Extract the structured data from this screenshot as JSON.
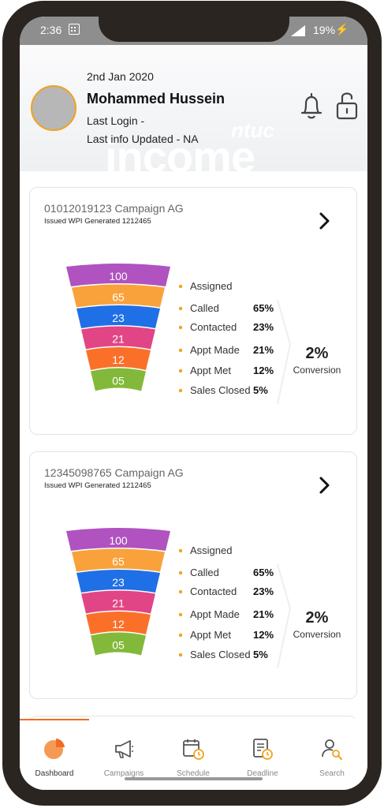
{
  "status_bar": {
    "time": "2:36",
    "battery": "19%"
  },
  "header": {
    "date": "2nd Jan 2020",
    "name": "Mohammed Hussein",
    "last_login": "Last Login -",
    "last_updated": "Last info Updated - NA",
    "watermark_brand": "ntuc",
    "watermark_word": "income",
    "accent_color": "#f2a21d"
  },
  "campaigns": [
    {
      "title": "01012019123 Campaign AG",
      "subtitle": "Issued WPI Generated 1212465",
      "funnel": [
        "100",
        "65",
        "23",
        "21",
        "12",
        "05"
      ],
      "stages": [
        {
          "label": "Assigned",
          "pct": ""
        },
        {
          "label": "Called",
          "pct": "65%"
        },
        {
          "label": "Contacted",
          "pct": "23%"
        },
        {
          "label": "Appt Made",
          "pct": "21%"
        },
        {
          "label": "Appt Met",
          "pct": "12%"
        },
        {
          "label": "Sales Closed",
          "pct": "5%"
        }
      ],
      "conversion_value": "2%",
      "conversion_label": "Conversion"
    },
    {
      "title": "12345098765 Campaign AG",
      "subtitle": "Issued WPI Generated 1212465",
      "funnel": [
        "100",
        "65",
        "23",
        "21",
        "12",
        "05"
      ],
      "stages": [
        {
          "label": "Assigned",
          "pct": ""
        },
        {
          "label": "Called",
          "pct": "65%"
        },
        {
          "label": "Contacted",
          "pct": "23%"
        },
        {
          "label": "Appt Made",
          "pct": "21%"
        },
        {
          "label": "Appt Met",
          "pct": "12%"
        },
        {
          "label": "Sales Closed",
          "pct": "5%"
        }
      ],
      "conversion_value": "2%",
      "conversion_label": "Conversion"
    }
  ],
  "funnel_colors": [
    "#b052c0",
    "#f9a23b",
    "#1f6fe6",
    "#e24585",
    "#fb7029",
    "#83b93a"
  ],
  "tabs": [
    {
      "label": "Dashboard",
      "icon": "pie-chart-icon",
      "active": true
    },
    {
      "label": "Campaigns",
      "icon": "megaphone-icon",
      "active": false
    },
    {
      "label": "Schedule",
      "icon": "calendar-clock-icon",
      "active": false
    },
    {
      "label": "Deadline",
      "icon": "document-clock-icon",
      "active": false
    },
    {
      "label": "Search",
      "icon": "user-search-icon",
      "active": false
    }
  ],
  "active_tab_color": "#f26b21"
}
